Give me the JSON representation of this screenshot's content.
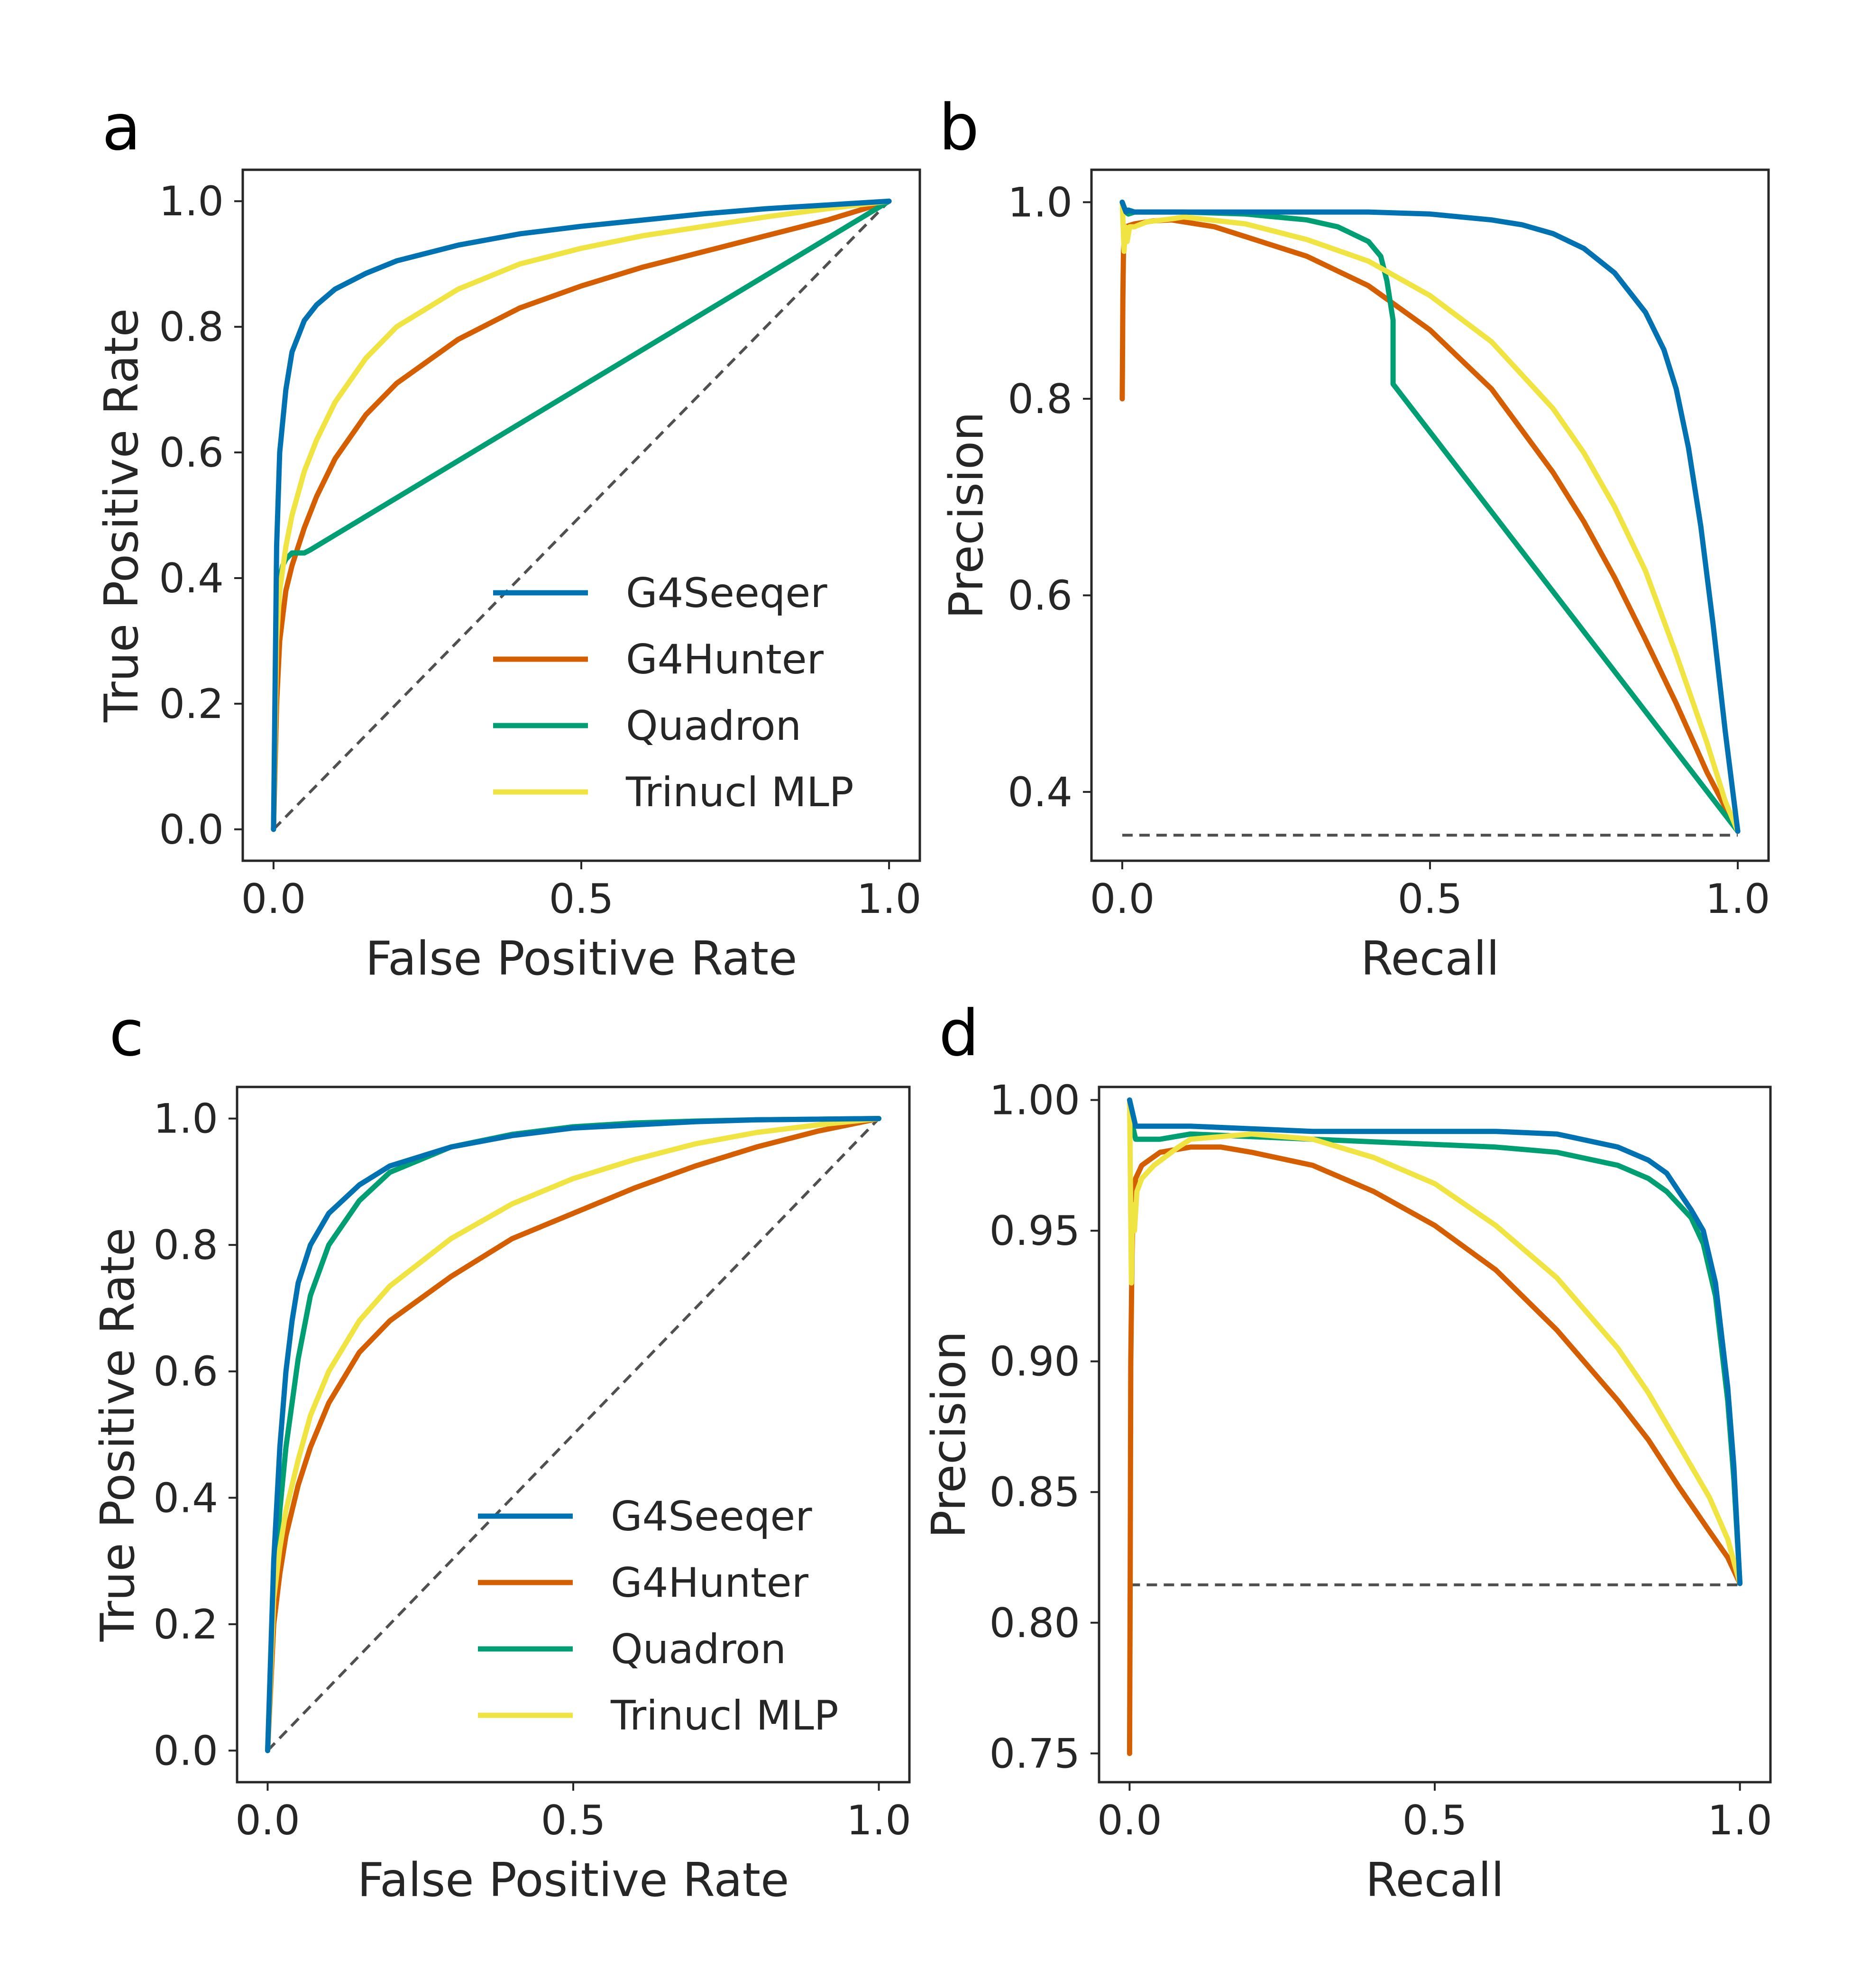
{
  "chart_data": [
    {
      "type": "line",
      "panel_label": "a",
      "xlabel": "False Positive Rate",
      "ylabel": "True Positive Rate",
      "xlim": [
        -0.05,
        1.05
      ],
      "ylim": [
        -0.05,
        1.05
      ],
      "xticks": [
        0.0,
        0.5,
        1.0
      ],
      "xtick_labels": [
        "0.0",
        "0.5",
        "1.0"
      ],
      "yticks": [
        0.0,
        0.2,
        0.4,
        0.6,
        0.8,
        1.0
      ],
      "ytick_labels": [
        "0.0",
        "0.2",
        "0.4",
        "0.6",
        "0.8",
        "1.0"
      ],
      "legend_position": "lower-right",
      "grid": false,
      "baseline": {
        "x": [
          0,
          1
        ],
        "y": [
          0,
          1
        ],
        "color": "#505050"
      },
      "series": [
        {
          "name": "G4Seeqer",
          "color": "#0072b2",
          "x": [
            0,
            0.005,
            0.01,
            0.02,
            0.03,
            0.05,
            0.07,
            0.1,
            0.15,
            0.2,
            0.3,
            0.4,
            0.5,
            0.6,
            0.7,
            0.8,
            0.9,
            1.0
          ],
          "y": [
            0,
            0.45,
            0.6,
            0.7,
            0.76,
            0.81,
            0.835,
            0.86,
            0.885,
            0.905,
            0.93,
            0.948,
            0.96,
            0.97,
            0.98,
            0.988,
            0.994,
            1.0
          ]
        },
        {
          "name": "G4Hunter",
          "color": "#d55e00",
          "x": [
            0,
            0.005,
            0.01,
            0.02,
            0.03,
            0.05,
            0.07,
            0.1,
            0.15,
            0.2,
            0.3,
            0.4,
            0.5,
            0.6,
            0.7,
            0.8,
            0.9,
            1.0
          ],
          "y": [
            0,
            0.2,
            0.3,
            0.38,
            0.42,
            0.48,
            0.53,
            0.59,
            0.66,
            0.71,
            0.78,
            0.83,
            0.865,
            0.895,
            0.92,
            0.945,
            0.97,
            1.0
          ]
        },
        {
          "name": "Quadron",
          "color": "#009e73",
          "x": [
            0,
            0.005,
            0.01,
            0.015,
            0.02,
            0.03,
            0.05,
            0.06,
            1.0
          ],
          "y": [
            0,
            0.33,
            0.4,
            0.42,
            0.43,
            0.44,
            0.44,
            0.445,
            1.0
          ]
        },
        {
          "name": "Trinucl MLP",
          "color": "#f0e442",
          "x": [
            0,
            0.005,
            0.01,
            0.02,
            0.03,
            0.05,
            0.07,
            0.1,
            0.15,
            0.2,
            0.3,
            0.4,
            0.5,
            0.6,
            0.7,
            0.8,
            0.9,
            1.0
          ],
          "y": [
            0,
            0.3,
            0.38,
            0.45,
            0.5,
            0.57,
            0.62,
            0.68,
            0.75,
            0.8,
            0.86,
            0.9,
            0.925,
            0.945,
            0.96,
            0.975,
            0.988,
            1.0
          ]
        }
      ]
    },
    {
      "type": "line",
      "panel_label": "b",
      "xlabel": "Recall",
      "ylabel": "Precision",
      "xlim": [
        -0.05,
        1.05
      ],
      "ylim": [
        0.33,
        1.033
      ],
      "xticks": [
        0.0,
        0.5,
        1.0
      ],
      "xtick_labels": [
        "0.0",
        "0.5",
        "1.0"
      ],
      "yticks": [
        0.4,
        0.6,
        0.8,
        1.0
      ],
      "ytick_labels": [
        "0.4",
        "0.6",
        "0.8",
        "1.0"
      ],
      "grid": false,
      "baseline": {
        "x": [
          0,
          1
        ],
        "y": [
          0.356,
          0.356
        ],
        "color": "#505050"
      },
      "series": [
        {
          "name": "G4Seeqer",
          "color": "#0072b2",
          "x": [
            0,
            0.003,
            0.006,
            0.01,
            0.02,
            0.05,
            0.1,
            0.2,
            0.3,
            0.4,
            0.5,
            0.6,
            0.65,
            0.7,
            0.75,
            0.8,
            0.85,
            0.88,
            0.9,
            0.92,
            0.94,
            0.96,
            0.98,
            1.0
          ],
          "y": [
            1.0,
            0.995,
            0.99,
            0.992,
            0.99,
            0.99,
            0.99,
            0.99,
            0.99,
            0.99,
            0.988,
            0.982,
            0.977,
            0.968,
            0.953,
            0.928,
            0.888,
            0.85,
            0.81,
            0.75,
            0.67,
            0.57,
            0.46,
            0.36
          ]
        },
        {
          "name": "G4Hunter",
          "color": "#d55e00",
          "x": [
            0.0,
            0.001,
            0.002,
            0.004,
            0.006,
            0.01,
            0.02,
            0.05,
            0.08,
            0.1,
            0.15,
            0.2,
            0.3,
            0.4,
            0.5,
            0.6,
            0.7,
            0.75,
            0.8,
            0.85,
            0.9,
            0.95,
            1.0
          ],
          "y": [
            0.8,
            0.9,
            0.95,
            0.97,
            0.975,
            0.976,
            0.978,
            0.981,
            0.982,
            0.98,
            0.975,
            0.965,
            0.945,
            0.915,
            0.87,
            0.81,
            0.725,
            0.675,
            0.618,
            0.555,
            0.49,
            0.42,
            0.36
          ]
        },
        {
          "name": "Quadron",
          "color": "#009e73",
          "x": [
            0,
            0.005,
            0.01,
            0.02,
            0.05,
            0.1,
            0.2,
            0.3,
            0.35,
            0.4,
            0.42,
            0.43,
            0.44,
            0.44,
            1.0
          ],
          "y": [
            1.0,
            0.99,
            0.988,
            0.99,
            0.99,
            0.99,
            0.988,
            0.982,
            0.975,
            0.96,
            0.945,
            0.92,
            0.88,
            0.815,
            0.36
          ]
        },
        {
          "name": "Trinucl MLP",
          "color": "#f0e442",
          "x": [
            0,
            0.003,
            0.005,
            0.008,
            0.012,
            0.02,
            0.04,
            0.08,
            0.1,
            0.2,
            0.3,
            0.4,
            0.5,
            0.6,
            0.7,
            0.75,
            0.8,
            0.85,
            0.9,
            0.95,
            0.98,
            1.0
          ],
          "y": [
            1.0,
            0.95,
            0.975,
            0.96,
            0.975,
            0.975,
            0.98,
            0.983,
            0.985,
            0.978,
            0.962,
            0.94,
            0.905,
            0.858,
            0.79,
            0.745,
            0.69,
            0.625,
            0.54,
            0.45,
            0.39,
            0.36
          ]
        }
      ]
    },
    {
      "type": "line",
      "panel_label": "c",
      "xlabel": "False Positive Rate",
      "ylabel": "True Positive Rate",
      "xlim": [
        -0.05,
        1.05
      ],
      "ylim": [
        -0.05,
        1.05
      ],
      "xticks": [
        0.0,
        0.5,
        1.0
      ],
      "xtick_labels": [
        "0.0",
        "0.5",
        "1.0"
      ],
      "yticks": [
        0.0,
        0.2,
        0.4,
        0.6,
        0.8,
        1.0
      ],
      "ytick_labels": [
        "0.0",
        "0.2",
        "0.4",
        "0.6",
        "0.8",
        "1.0"
      ],
      "legend_position": "lower-right",
      "grid": false,
      "baseline": {
        "x": [
          0,
          1
        ],
        "y": [
          0,
          1
        ],
        "color": "#505050"
      },
      "series": [
        {
          "name": "G4Seeqer",
          "color": "#0072b2",
          "x": [
            0,
            0.01,
            0.02,
            0.03,
            0.04,
            0.05,
            0.07,
            0.1,
            0.15,
            0.2,
            0.3,
            0.4,
            0.5,
            0.6,
            0.7,
            0.8,
            0.9,
            1.0
          ],
          "y": [
            0,
            0.3,
            0.48,
            0.6,
            0.68,
            0.74,
            0.8,
            0.85,
            0.895,
            0.925,
            0.955,
            0.973,
            0.985,
            0.99,
            0.995,
            0.998,
            0.999,
            1.0
          ]
        },
        {
          "name": "G4Hunter",
          "color": "#d55e00",
          "x": [
            0,
            0.01,
            0.02,
            0.03,
            0.05,
            0.07,
            0.1,
            0.15,
            0.2,
            0.3,
            0.4,
            0.5,
            0.6,
            0.7,
            0.8,
            0.9,
            1.0
          ],
          "y": [
            0,
            0.2,
            0.28,
            0.34,
            0.42,
            0.48,
            0.55,
            0.63,
            0.68,
            0.75,
            0.81,
            0.85,
            0.89,
            0.925,
            0.955,
            0.98,
            1.0
          ]
        },
        {
          "name": "Quadron",
          "color": "#009e73",
          "x": [
            0,
            0.01,
            0.02,
            0.03,
            0.05,
            0.07,
            0.1,
            0.15,
            0.2,
            0.3,
            0.4,
            0.5,
            0.6,
            0.7,
            0.8,
            0.9,
            1.0
          ],
          "y": [
            0,
            0.25,
            0.38,
            0.48,
            0.62,
            0.72,
            0.8,
            0.87,
            0.915,
            0.955,
            0.975,
            0.987,
            0.993,
            0.996,
            0.998,
            0.999,
            1.0
          ]
        },
        {
          "name": "Trinucl MLP",
          "color": "#f0e442",
          "x": [
            0,
            0.01,
            0.02,
            0.03,
            0.05,
            0.07,
            0.1,
            0.15,
            0.2,
            0.3,
            0.4,
            0.5,
            0.6,
            0.7,
            0.8,
            0.9,
            1.0
          ],
          "y": [
            0,
            0.24,
            0.32,
            0.38,
            0.46,
            0.53,
            0.6,
            0.68,
            0.735,
            0.81,
            0.865,
            0.905,
            0.935,
            0.96,
            0.978,
            0.99,
            1.0
          ]
        }
      ]
    },
    {
      "type": "line",
      "panel_label": "d",
      "xlabel": "Recall",
      "ylabel": "Precision",
      "xlim": [
        -0.05,
        1.05
      ],
      "ylim": [
        0.739,
        1.005
      ],
      "xticks": [
        0.0,
        0.5,
        1.0
      ],
      "xtick_labels": [
        "0.0",
        "0.5",
        "1.0"
      ],
      "yticks": [
        0.75,
        0.8,
        0.85,
        0.9,
        0.95,
        1.0
      ],
      "ytick_labels": [
        "0.75",
        "0.80",
        "0.85",
        "0.90",
        "0.95",
        "1.00"
      ],
      "grid": false,
      "baseline": {
        "x": [
          0,
          1
        ],
        "y": [
          0.8145,
          0.8145
        ],
        "color": "#505050"
      },
      "series": [
        {
          "name": "G4Seeqer",
          "color": "#0072b2",
          "x": [
            0,
            0.005,
            0.01,
            0.02,
            0.05,
            0.1,
            0.2,
            0.3,
            0.4,
            0.5,
            0.6,
            0.7,
            0.8,
            0.85,
            0.88,
            0.9,
            0.92,
            0.94,
            0.96,
            0.98,
            0.99,
            1.0
          ],
          "y": [
            1.0,
            0.995,
            0.99,
            0.99,
            0.99,
            0.99,
            0.989,
            0.988,
            0.988,
            0.988,
            0.988,
            0.987,
            0.982,
            0.977,
            0.972,
            0.965,
            0.958,
            0.95,
            0.93,
            0.89,
            0.86,
            0.815
          ]
        },
        {
          "name": "G4Hunter",
          "color": "#d55e00",
          "x": [
            0.0,
            0.001,
            0.002,
            0.004,
            0.006,
            0.01,
            0.02,
            0.05,
            0.1,
            0.15,
            0.2,
            0.3,
            0.4,
            0.5,
            0.6,
            0.7,
            0.8,
            0.85,
            0.9,
            0.95,
            0.98,
            1.0
          ],
          "y": [
            0.75,
            0.82,
            0.9,
            0.94,
            0.96,
            0.97,
            0.975,
            0.98,
            0.982,
            0.982,
            0.98,
            0.975,
            0.965,
            0.952,
            0.935,
            0.912,
            0.885,
            0.87,
            0.852,
            0.835,
            0.825,
            0.815
          ]
        },
        {
          "name": "Quadron",
          "color": "#009e73",
          "x": [
            0,
            0.005,
            0.01,
            0.02,
            0.05,
            0.1,
            0.2,
            0.3,
            0.4,
            0.5,
            0.6,
            0.7,
            0.8,
            0.85,
            0.88,
            0.9,
            0.92,
            0.94,
            0.96,
            0.98,
            0.99,
            1.0
          ],
          "y": [
            1.0,
            0.99,
            0.985,
            0.985,
            0.985,
            0.987,
            0.986,
            0.985,
            0.984,
            0.983,
            0.982,
            0.98,
            0.975,
            0.97,
            0.965,
            0.96,
            0.955,
            0.945,
            0.925,
            0.885,
            0.855,
            0.815
          ]
        },
        {
          "name": "Trinucl MLP",
          "color": "#f0e442",
          "x": [
            0,
            0.003,
            0.005,
            0.008,
            0.012,
            0.02,
            0.04,
            0.08,
            0.1,
            0.2,
            0.3,
            0.4,
            0.5,
            0.6,
            0.7,
            0.8,
            0.85,
            0.9,
            0.95,
            0.98,
            1.0
          ],
          "y": [
            1.0,
            0.93,
            0.96,
            0.95,
            0.965,
            0.97,
            0.975,
            0.982,
            0.985,
            0.987,
            0.985,
            0.978,
            0.968,
            0.952,
            0.932,
            0.905,
            0.888,
            0.868,
            0.848,
            0.832,
            0.815
          ]
        }
      ]
    }
  ]
}
